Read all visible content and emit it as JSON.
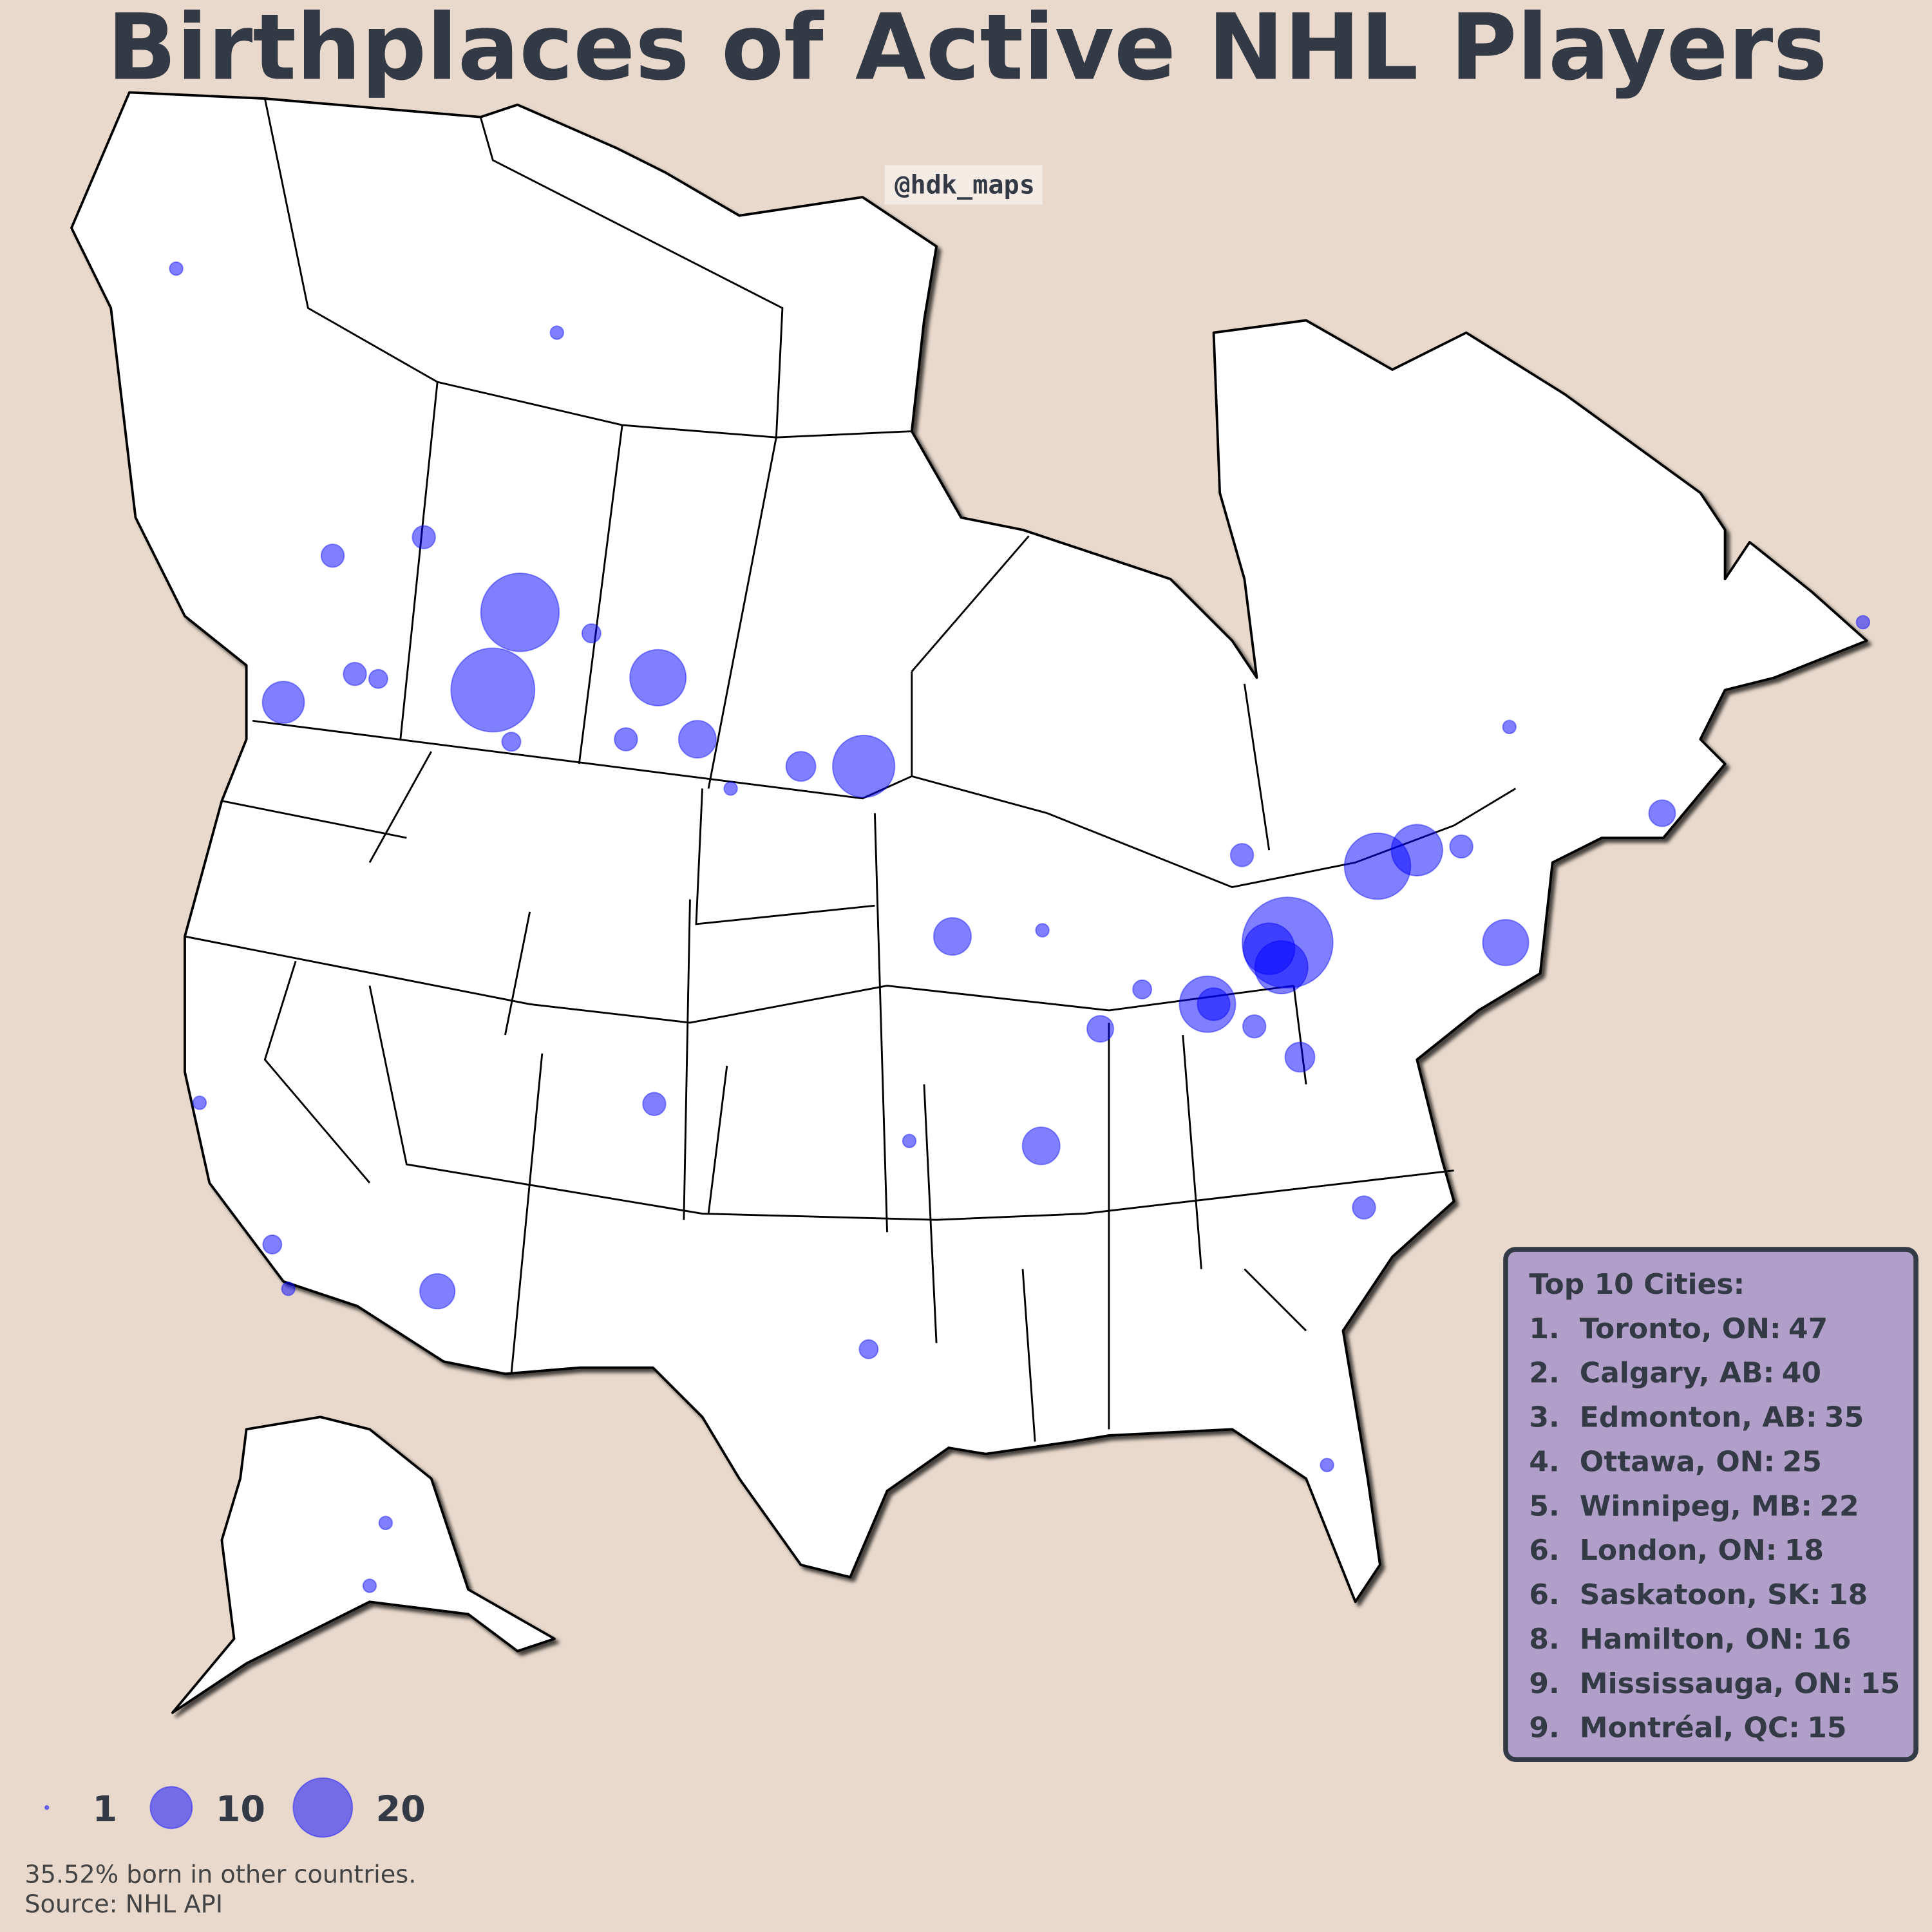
{
  "title": "Birthplaces of Active NHL Players",
  "watermark": "@hdk_maps",
  "top_cities": {
    "title": "Top 10 Cities:",
    "items": [
      {
        "rank": "1.",
        "city": "Toronto, ON:",
        "count": 47
      },
      {
        "rank": "2.",
        "city": "Calgary, AB:",
        "count": 40
      },
      {
        "rank": "3.",
        "city": "Edmonton, AB:",
        "count": 35
      },
      {
        "rank": "4.",
        "city": "Ottawa, ON:",
        "count": 25
      },
      {
        "rank": "5.",
        "city": "Winnipeg, MB:",
        "count": 22
      },
      {
        "rank": "6.",
        "city": "London, ON:",
        "count": 18
      },
      {
        "rank": "6.",
        "city": "Saskatoon, SK:",
        "count": 18
      },
      {
        "rank": "8.",
        "city": "Hamilton, ON:",
        "count": 16
      },
      {
        "rank": "9.",
        "city": "Mississauga, ON:",
        "count": 15
      },
      {
        "rank": "9.",
        "city": "Montréal, QC:",
        "count": 15
      }
    ]
  },
  "other_bubbles": [
    10,
    12,
    8,
    8,
    7,
    6,
    8,
    5,
    3,
    3,
    3,
    2,
    4,
    3,
    3,
    5,
    4,
    3,
    2,
    3,
    2,
    3,
    1,
    1,
    1,
    1,
    1,
    1,
    1,
    1,
    1,
    1,
    2,
    2,
    3,
    2,
    1,
    1
  ],
  "size_legend": [
    1,
    10,
    20
  ],
  "note": "35.52% born in other countries.",
  "source": "Source: NHL API"
}
